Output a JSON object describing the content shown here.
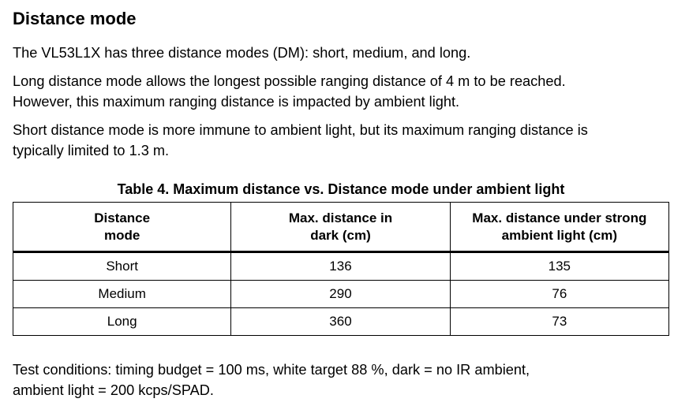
{
  "section": {
    "title": "Distance mode"
  },
  "paragraphs": {
    "p1": "The VL53L1X has three distance modes (DM): short, medium, and long.",
    "p2_line1": "Long distance mode allows the longest possible ranging distance of 4 m to be reached.",
    "p2_line2": "However, this maximum ranging distance is impacted by ambient light.",
    "p3_line1": "Short distance mode is more immune to ambient light, but its maximum ranging distance is",
    "p3_line2": "typically limited to 1.3 m."
  },
  "table": {
    "caption": "Table 4. Maximum distance vs. Distance mode under ambient light",
    "headers": [
      {
        "line1": "Distance",
        "line2": "mode"
      },
      {
        "line1": "Max. distance in",
        "line2": "dark (cm)"
      },
      {
        "line1": "Max. distance under strong",
        "line2": "ambient light (cm)"
      }
    ],
    "rows": [
      {
        "mode": "Short",
        "dark": "136",
        "ambient": "135"
      },
      {
        "mode": "Medium",
        "dark": "290",
        "ambient": "76"
      },
      {
        "mode": "Long",
        "dark": "360",
        "ambient": "73"
      }
    ]
  },
  "notes": {
    "line1": "Test conditions: timing budget = 100 ms, white target 88 %, dark = no IR ambient,",
    "line2": "ambient light = 200 kcps/SPAD."
  }
}
